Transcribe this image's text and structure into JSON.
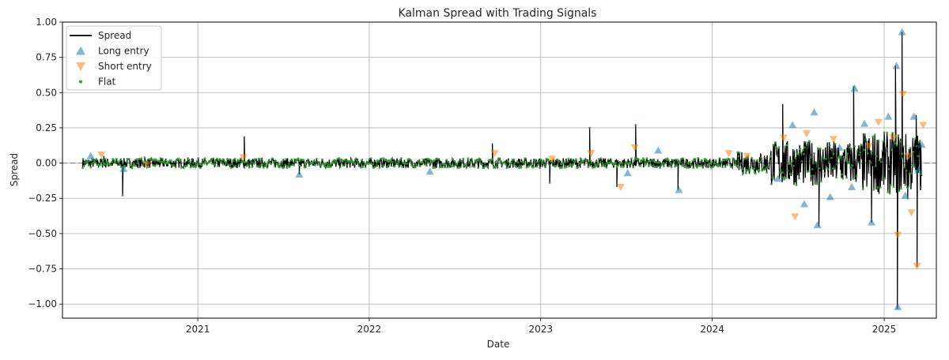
{
  "chart_data": {
    "type": "line",
    "title": "Kalman Spread with Trading Signals",
    "xlabel": "Date",
    "ylabel": "Spread",
    "x_range": [
      "2020-03-19",
      "2025-04-22"
    ],
    "ylim": [
      -1.1,
      1.0
    ],
    "x_ticks": [
      "2021",
      "2022",
      "2023",
      "2024",
      "2025"
    ],
    "y_ticks": [
      "1.00",
      "0.75",
      "0.50",
      "0.25",
      "0.00",
      "−0.25",
      "−0.50",
      "−0.75",
      "−1.00"
    ],
    "y_tick_values": [
      1.0,
      0.75,
      0.5,
      0.25,
      0.0,
      -0.25,
      -0.5,
      -0.75,
      -1.0
    ],
    "grid": true,
    "zero_line": {
      "y": 0.0,
      "style": "dashed",
      "color": "#808080"
    },
    "legend": {
      "position": "top-left",
      "entries": [
        {
          "label": "Spread",
          "marker": "line",
          "color": "#000000"
        },
        {
          "label": "Long entry",
          "marker": "triangle-up",
          "color": "#1f77b4"
        },
        {
          "label": "Short entry",
          "marker": "triangle-down",
          "color": "#ff7f0e"
        },
        {
          "label": "Flat",
          "marker": "dot",
          "color": "#2ca02c"
        }
      ]
    },
    "series": [
      {
        "name": "Spread",
        "type": "line",
        "color": "#000000",
        "note_points": [
          [
            "2020-05-01",
            0.0
          ],
          [
            "2020-06-15",
            0.05
          ],
          [
            "2020-07-25",
            -0.23
          ],
          [
            "2020-09-10",
            0.04
          ],
          [
            "2021-04-10",
            0.19
          ],
          [
            "2021-08-05",
            -0.08
          ],
          [
            "2022-09-20",
            0.14
          ],
          [
            "2023-01-20",
            -0.14
          ],
          [
            "2023-04-15",
            0.25
          ],
          [
            "2023-06-12",
            -0.17
          ],
          [
            "2023-07-22",
            0.27
          ],
          [
            "2023-10-20",
            -0.19
          ],
          [
            "2024-05-30",
            0.42
          ],
          [
            "2024-08-15",
            -0.45
          ],
          [
            "2024-10-28",
            0.54
          ],
          [
            "2024-12-05",
            -0.42
          ],
          [
            "2025-01-25",
            0.69
          ],
          [
            "2025-01-29",
            -1.03
          ],
          [
            "2025-02-08",
            0.93
          ],
          [
            "2025-02-20",
            -0.25
          ],
          [
            "2025-03-10",
            0.34
          ],
          [
            "2025-03-12",
            -0.73
          ],
          [
            "2025-03-20",
            0.13
          ]
        ]
      },
      {
        "name": "Long entry",
        "type": "scatter",
        "color": "#1f77b4",
        "points": [
          [
            "2020-05-18",
            0.05
          ],
          [
            "2020-07-27",
            -0.04
          ],
          [
            "2021-08-05",
            -0.08
          ],
          [
            "2022-05-10",
            -0.06
          ],
          [
            "2023-07-05",
            -0.07
          ],
          [
            "2023-09-08",
            0.09
          ],
          [
            "2023-10-22",
            -0.19
          ],
          [
            "2024-05-20",
            -0.11
          ],
          [
            "2024-06-20",
            0.27
          ],
          [
            "2024-07-15",
            -0.29
          ],
          [
            "2024-08-05",
            0.36
          ],
          [
            "2024-08-12",
            -0.44
          ],
          [
            "2024-09-08",
            -0.24
          ],
          [
            "2024-09-28",
            0.11
          ],
          [
            "2024-10-30",
            0.53
          ],
          [
            "2024-10-24",
            -0.17
          ],
          [
            "2024-11-20",
            0.28
          ],
          [
            "2024-12-05",
            -0.42
          ],
          [
            "2025-01-10",
            0.33
          ],
          [
            "2025-01-27",
            0.69
          ],
          [
            "2025-01-30",
            -1.02
          ],
          [
            "2025-02-08",
            0.93
          ],
          [
            "2025-02-15",
            -0.23
          ],
          [
            "2025-03-05",
            0.33
          ],
          [
            "2025-03-15",
            -0.05
          ],
          [
            "2025-03-22",
            0.13
          ]
        ]
      },
      {
        "name": "Short entry",
        "type": "scatter",
        "color": "#ff7f0e",
        "points": [
          [
            "2020-06-10",
            0.06
          ],
          [
            "2020-09-15",
            -0.01
          ],
          [
            "2021-04-08",
            0.04
          ],
          [
            "2022-09-25",
            0.07
          ],
          [
            "2023-01-25",
            0.03
          ],
          [
            "2023-04-18",
            0.07
          ],
          [
            "2023-06-20",
            -0.17
          ],
          [
            "2023-07-20",
            0.11
          ],
          [
            "2024-02-05",
            0.07
          ],
          [
            "2024-03-15",
            0.05
          ],
          [
            "2024-06-01",
            0.18
          ],
          [
            "2024-06-25",
            -0.38
          ],
          [
            "2024-07-20",
            0.21
          ],
          [
            "2024-09-15",
            0.17
          ],
          [
            "2024-11-30",
            0.12
          ],
          [
            "2024-12-20",
            0.29
          ],
          [
            "2025-01-20",
            0.18
          ],
          [
            "2025-01-30",
            -0.51
          ],
          [
            "2025-02-10",
            0.49
          ],
          [
            "2025-02-28",
            -0.35
          ],
          [
            "2025-03-12",
            -0.73
          ],
          [
            "2025-03-25",
            0.27
          ],
          [
            "2025-02-22",
            0.05
          ]
        ]
      },
      {
        "name": "Flat",
        "type": "scatter",
        "color": "#2ca02c",
        "marker_note": "dense small dots along spread near 0 from 2020-05 to 2025-03"
      }
    ]
  }
}
